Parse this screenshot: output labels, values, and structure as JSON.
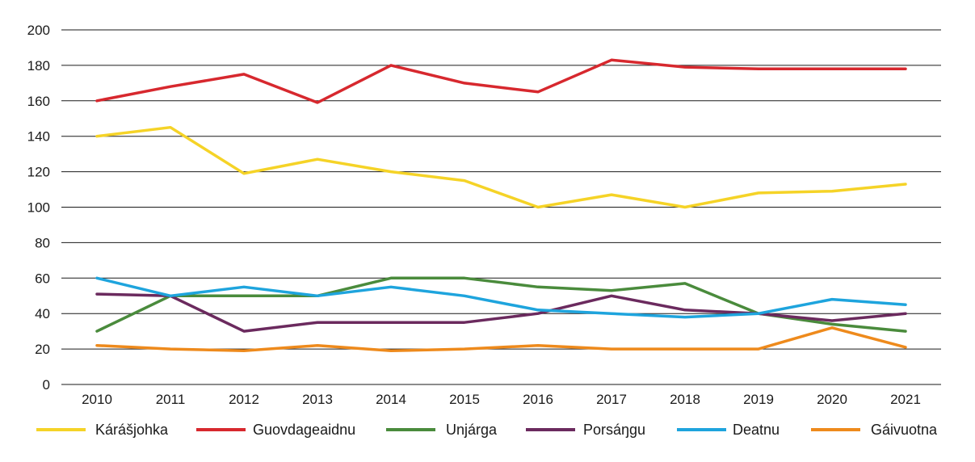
{
  "chart_data": {
    "type": "line",
    "title": "",
    "xlabel": "",
    "ylabel": "",
    "ylim": [
      0,
      200
    ],
    "y_ticks": [
      "0",
      "20",
      "40",
      "60",
      "80",
      "100",
      "120",
      "140",
      "160",
      "180",
      "200"
    ],
    "x": [
      "2010",
      "2011",
      "2012",
      "2013",
      "2014",
      "2015",
      "2016",
      "2017",
      "2018",
      "2019",
      "2020",
      "2021"
    ],
    "grid": true,
    "legend_position": "bottom",
    "series": [
      {
        "name": "Kárášjohka",
        "color": "#f5d327",
        "values": [
          140,
          145,
          119,
          127,
          120,
          115,
          100,
          107,
          100,
          108,
          109,
          113
        ]
      },
      {
        "name": "Guovdageaidnu",
        "color": "#d7282e",
        "values": [
          160,
          168,
          175,
          159,
          180,
          170,
          165,
          183,
          179,
          178,
          178,
          178
        ]
      },
      {
        "name": "Unjárga",
        "color": "#4a8b3c",
        "values": [
          30,
          50,
          50,
          50,
          60,
          60,
          55,
          53,
          57,
          40,
          34,
          30
        ]
      },
      {
        "name": "Porsáŋgu",
        "color": "#6b2a5e",
        "values": [
          51,
          50,
          30,
          35,
          35,
          35,
          40,
          50,
          42,
          40,
          36,
          40
        ]
      },
      {
        "name": "Deatnu",
        "color": "#1ea4dd",
        "values": [
          60,
          50,
          55,
          50,
          55,
          50,
          42,
          40,
          38,
          40,
          48,
          45
        ]
      },
      {
        "name": "Gáivuotna",
        "color": "#ee8a1c",
        "values": [
          22,
          20,
          19,
          22,
          19,
          20,
          22,
          20,
          20,
          20,
          32,
          21
        ]
      }
    ]
  }
}
